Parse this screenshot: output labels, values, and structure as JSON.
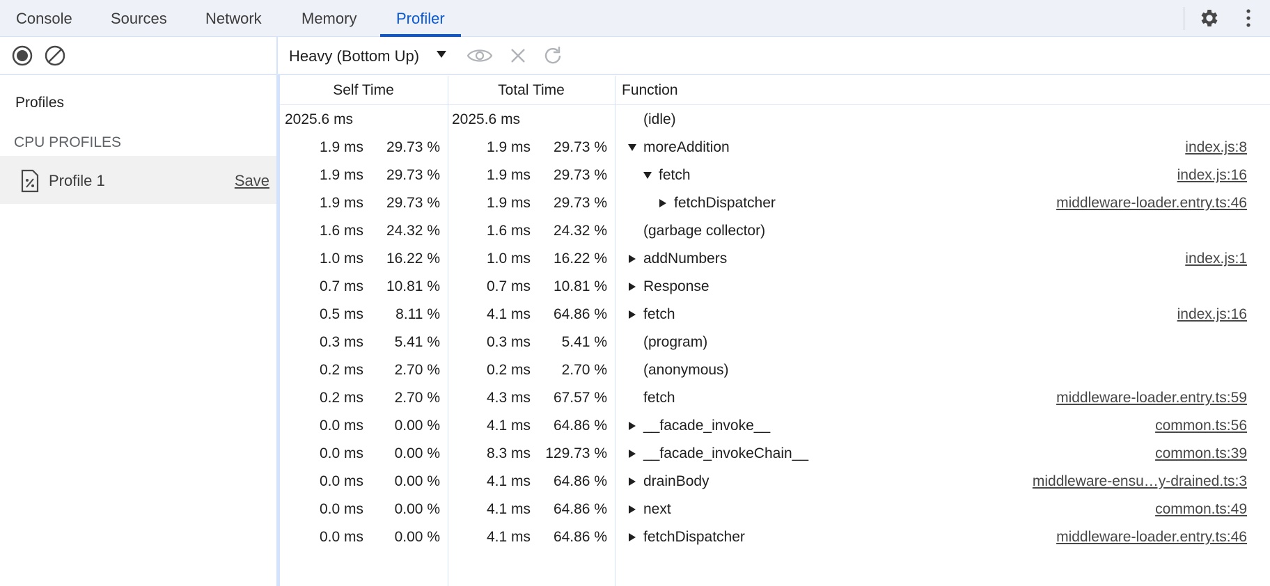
{
  "tabs": [
    "Console",
    "Sources",
    "Network",
    "Memory",
    "Profiler"
  ],
  "active_tab": 4,
  "sidebar": {
    "profiles_heading": "Profiles",
    "section": "CPU PROFILES",
    "profile": {
      "name": "Profile 1",
      "action": "Save"
    }
  },
  "toolbar": {
    "view": "Heavy (Bottom Up)"
  },
  "table": {
    "columns": [
      "Self Time",
      "Total Time",
      "Function"
    ],
    "rows": [
      {
        "self_time": "2025.6 ms",
        "total_time": "2025.6 ms",
        "function": "(idle)"
      },
      {
        "self_time": "1.9 ms",
        "self_pct": "29.73 %",
        "total_time": "1.9 ms",
        "total_pct": "29.73 %",
        "function": "moreAddition",
        "url": "index.js:8",
        "expanded": true,
        "children": [
          {
            "self_time": "1.9 ms",
            "self_pct": "29.73 %",
            "total_time": "1.9 ms",
            "total_pct": "29.73 %",
            "function": "fetch",
            "url": "index.js:16",
            "expanded": true,
            "children": [
              {
                "self_time": "1.9 ms",
                "self_pct": "29.73 %",
                "total_time": "1.9 ms",
                "total_pct": "29.73 %",
                "function": "fetchDispatcher",
                "url": "middleware-loader.entry.ts:46",
                "expanded": false
              }
            ]
          }
        ]
      },
      {
        "self_time": "1.6 ms",
        "self_pct": "24.32 %",
        "total_time": "1.6 ms",
        "total_pct": "24.32 %",
        "function": "(garbage collector)"
      },
      {
        "self_time": "1.0 ms",
        "self_pct": "16.22 %",
        "total_time": "1.0 ms",
        "total_pct": "16.22 %",
        "function": "addNumbers",
        "url": "index.js:1",
        "expanded": false
      },
      {
        "self_time": "0.7 ms",
        "self_pct": "10.81 %",
        "total_time": "0.7 ms",
        "total_pct": "10.81 %",
        "function": "Response",
        "expanded": false
      },
      {
        "self_time": "0.5 ms",
        "self_pct": "8.11 %",
        "total_time": "4.1 ms",
        "total_pct": "64.86 %",
        "function": "fetch",
        "url": "index.js:16",
        "expanded": false
      },
      {
        "self_time": "0.3 ms",
        "self_pct": "5.41 %",
        "total_time": "0.3 ms",
        "total_pct": "5.41 %",
        "function": "(program)"
      },
      {
        "self_time": "0.2 ms",
        "self_pct": "2.70 %",
        "total_time": "0.2 ms",
        "total_pct": "2.70 %",
        "function": "(anonymous)"
      },
      {
        "self_time": "0.2 ms",
        "self_pct": "2.70 %",
        "total_time": "4.3 ms",
        "total_pct": "67.57 %",
        "function": "fetch",
        "url": "middleware-loader.entry.ts:59"
      },
      {
        "self_time": "0.0 ms",
        "self_pct": "0.00 %",
        "total_time": "4.1 ms",
        "total_pct": "64.86 %",
        "function": "__facade_invoke__",
        "url": "common.ts:56",
        "expanded": false
      },
      {
        "self_time": "0.0 ms",
        "self_pct": "0.00 %",
        "total_time": "8.3 ms",
        "total_pct": "129.73 %",
        "function": "__facade_invokeChain__",
        "url": "common.ts:39",
        "expanded": false
      },
      {
        "self_time": "0.0 ms",
        "self_pct": "0.00 %",
        "total_time": "4.1 ms",
        "total_pct": "64.86 %",
        "function": "drainBody",
        "url": "middleware-ensu…y-drained.ts:3",
        "expanded": false
      },
      {
        "self_time": "0.0 ms",
        "self_pct": "0.00 %",
        "total_time": "4.1 ms",
        "total_pct": "64.86 %",
        "function": "next",
        "url": "common.ts:49",
        "expanded": false
      },
      {
        "self_time": "0.0 ms",
        "self_pct": "0.00 %",
        "total_time": "4.1 ms",
        "total_pct": "64.86 %",
        "function": "fetchDispatcher",
        "url": "middleware-loader.entry.ts:46",
        "expanded": false
      }
    ]
  }
}
